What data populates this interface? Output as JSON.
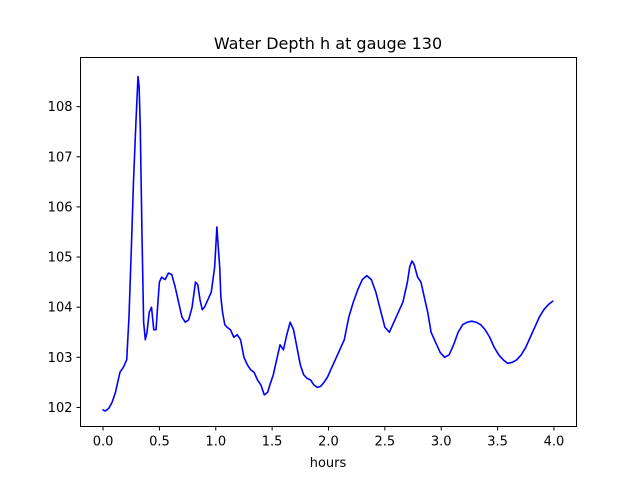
{
  "chart_data": {
    "type": "line",
    "title": "Water Depth h at gauge 130",
    "xlabel": "hours",
    "ylabel": "",
    "xlim": [
      -0.2,
      4.2
    ],
    "ylim": [
      101.62,
      108.98
    ],
    "xticks": [
      0.0,
      0.5,
      1.0,
      1.5,
      2.0,
      2.5,
      3.0,
      3.5,
      4.0
    ],
    "xtick_labels": [
      "0.0",
      "0.5",
      "1.0",
      "1.5",
      "2.0",
      "2.5",
      "3.0",
      "3.5",
      "4.0"
    ],
    "yticks": [
      102,
      103,
      104,
      105,
      106,
      107,
      108
    ],
    "ytick_labels": [
      "102",
      "103",
      "104",
      "105",
      "106",
      "107",
      "108"
    ],
    "grid": false,
    "series": [
      {
        "color": "#0000ff",
        "x": [
          0.0,
          0.02,
          0.05,
          0.08,
          0.11,
          0.15,
          0.18,
          0.21,
          0.23,
          0.25,
          0.27,
          0.29,
          0.31,
          0.32,
          0.33,
          0.345,
          0.36,
          0.375,
          0.39,
          0.41,
          0.43,
          0.45,
          0.47,
          0.49,
          0.5,
          0.52,
          0.55,
          0.58,
          0.61,
          0.64,
          0.67,
          0.7,
          0.73,
          0.76,
          0.79,
          0.82,
          0.84,
          0.86,
          0.88,
          0.9,
          0.93,
          0.96,
          0.99,
          1.01,
          1.025,
          1.035,
          1.045,
          1.06,
          1.08,
          1.1,
          1.13,
          1.16,
          1.19,
          1.22,
          1.25,
          1.28,
          1.31,
          1.34,
          1.37,
          1.4,
          1.43,
          1.46,
          1.48,
          1.51,
          1.54,
          1.57,
          1.6,
          1.63,
          1.66,
          1.69,
          1.72,
          1.75,
          1.78,
          1.81,
          1.84,
          1.87,
          1.9,
          1.93,
          1.96,
          1.99,
          2.02,
          2.06,
          2.1,
          2.14,
          2.18,
          2.22,
          2.26,
          2.3,
          2.34,
          2.38,
          2.42,
          2.46,
          2.5,
          2.54,
          2.58,
          2.62,
          2.66,
          2.7,
          2.72,
          2.74,
          2.76,
          2.79,
          2.82,
          2.85,
          2.88,
          2.91,
          2.95,
          2.99,
          3.03,
          3.07,
          3.11,
          3.15,
          3.19,
          3.23,
          3.27,
          3.31,
          3.35,
          3.39,
          3.43,
          3.47,
          3.51,
          3.55,
          3.59,
          3.63,
          3.67,
          3.71,
          3.75,
          3.79,
          3.83,
          3.87,
          3.91,
          3.95,
          3.99
        ],
        "y": [
          101.95,
          101.93,
          101.98,
          102.1,
          102.3,
          102.7,
          102.8,
          102.95,
          103.8,
          105.1,
          106.5,
          107.6,
          108.6,
          108.4,
          107.6,
          105.5,
          103.7,
          103.35,
          103.5,
          103.9,
          104.0,
          103.55,
          103.55,
          104.2,
          104.5,
          104.6,
          104.55,
          104.68,
          104.65,
          104.4,
          104.1,
          103.8,
          103.7,
          103.75,
          104.0,
          104.5,
          104.45,
          104.15,
          103.95,
          104.0,
          104.15,
          104.3,
          104.8,
          105.6,
          105.1,
          104.8,
          104.2,
          103.9,
          103.65,
          103.6,
          103.55,
          103.4,
          103.45,
          103.35,
          103.0,
          102.85,
          102.75,
          102.7,
          102.55,
          102.45,
          102.25,
          102.3,
          102.45,
          102.65,
          102.95,
          103.25,
          103.15,
          103.45,
          103.7,
          103.55,
          103.2,
          102.85,
          102.65,
          102.58,
          102.55,
          102.45,
          102.4,
          102.42,
          102.5,
          102.6,
          102.75,
          102.95,
          103.15,
          103.35,
          103.8,
          104.1,
          104.35,
          104.55,
          104.63,
          104.55,
          104.3,
          103.95,
          103.6,
          103.5,
          103.7,
          103.9,
          104.1,
          104.5,
          104.8,
          104.92,
          104.85,
          104.6,
          104.5,
          104.2,
          103.9,
          103.5,
          103.3,
          103.1,
          103.0,
          103.05,
          103.25,
          103.5,
          103.65,
          103.7,
          103.72,
          103.7,
          103.65,
          103.55,
          103.4,
          103.2,
          103.05,
          102.95,
          102.88,
          102.9,
          102.95,
          103.05,
          103.2,
          103.4,
          103.6,
          103.8,
          103.95,
          104.05,
          104.12
        ]
      }
    ]
  }
}
